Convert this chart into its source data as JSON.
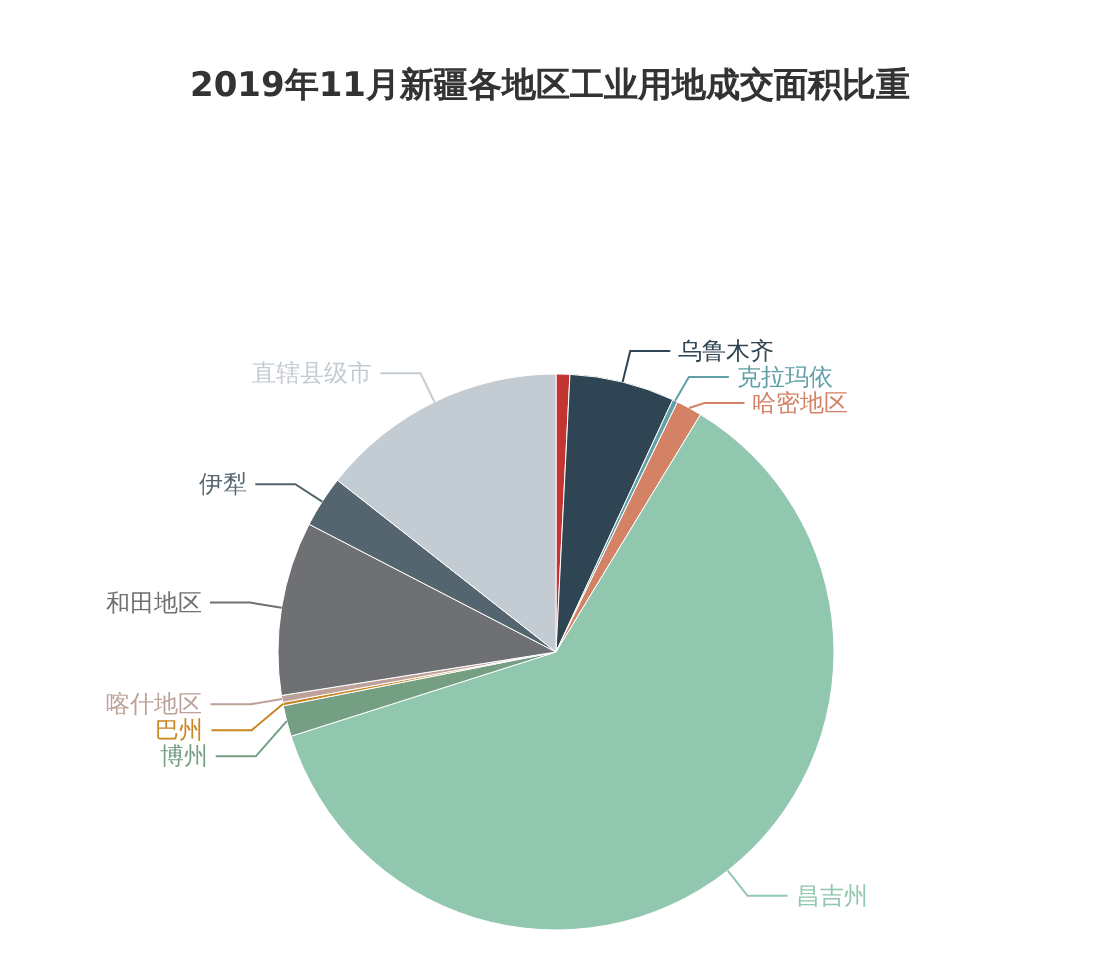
{
  "chart_data": {
    "type": "pie",
    "title": "2019年11月新疆各地区工业用地成交面积比重",
    "categories": [
      null,
      "乌鲁木齐",
      "克拉玛依",
      "哈密地区",
      "昌吉州",
      "博州",
      "巴州",
      "喀什地区",
      "和田地区",
      "伊犁",
      "直辖县级市"
    ],
    "values": [
      0.8,
      6.1,
      0.3,
      1.5,
      61.4,
      1.8,
      0.2,
      0.4,
      10.1,
      3.0,
      14.4
    ],
    "colors": [
      "#c23531",
      "#2f4554",
      "#61a0a8",
      "#d48265",
      "#91c7ae",
      "#749f83",
      "#ca8622",
      "#bda29a",
      "#6e7074",
      "#546570",
      "#c4ccd3"
    ]
  }
}
